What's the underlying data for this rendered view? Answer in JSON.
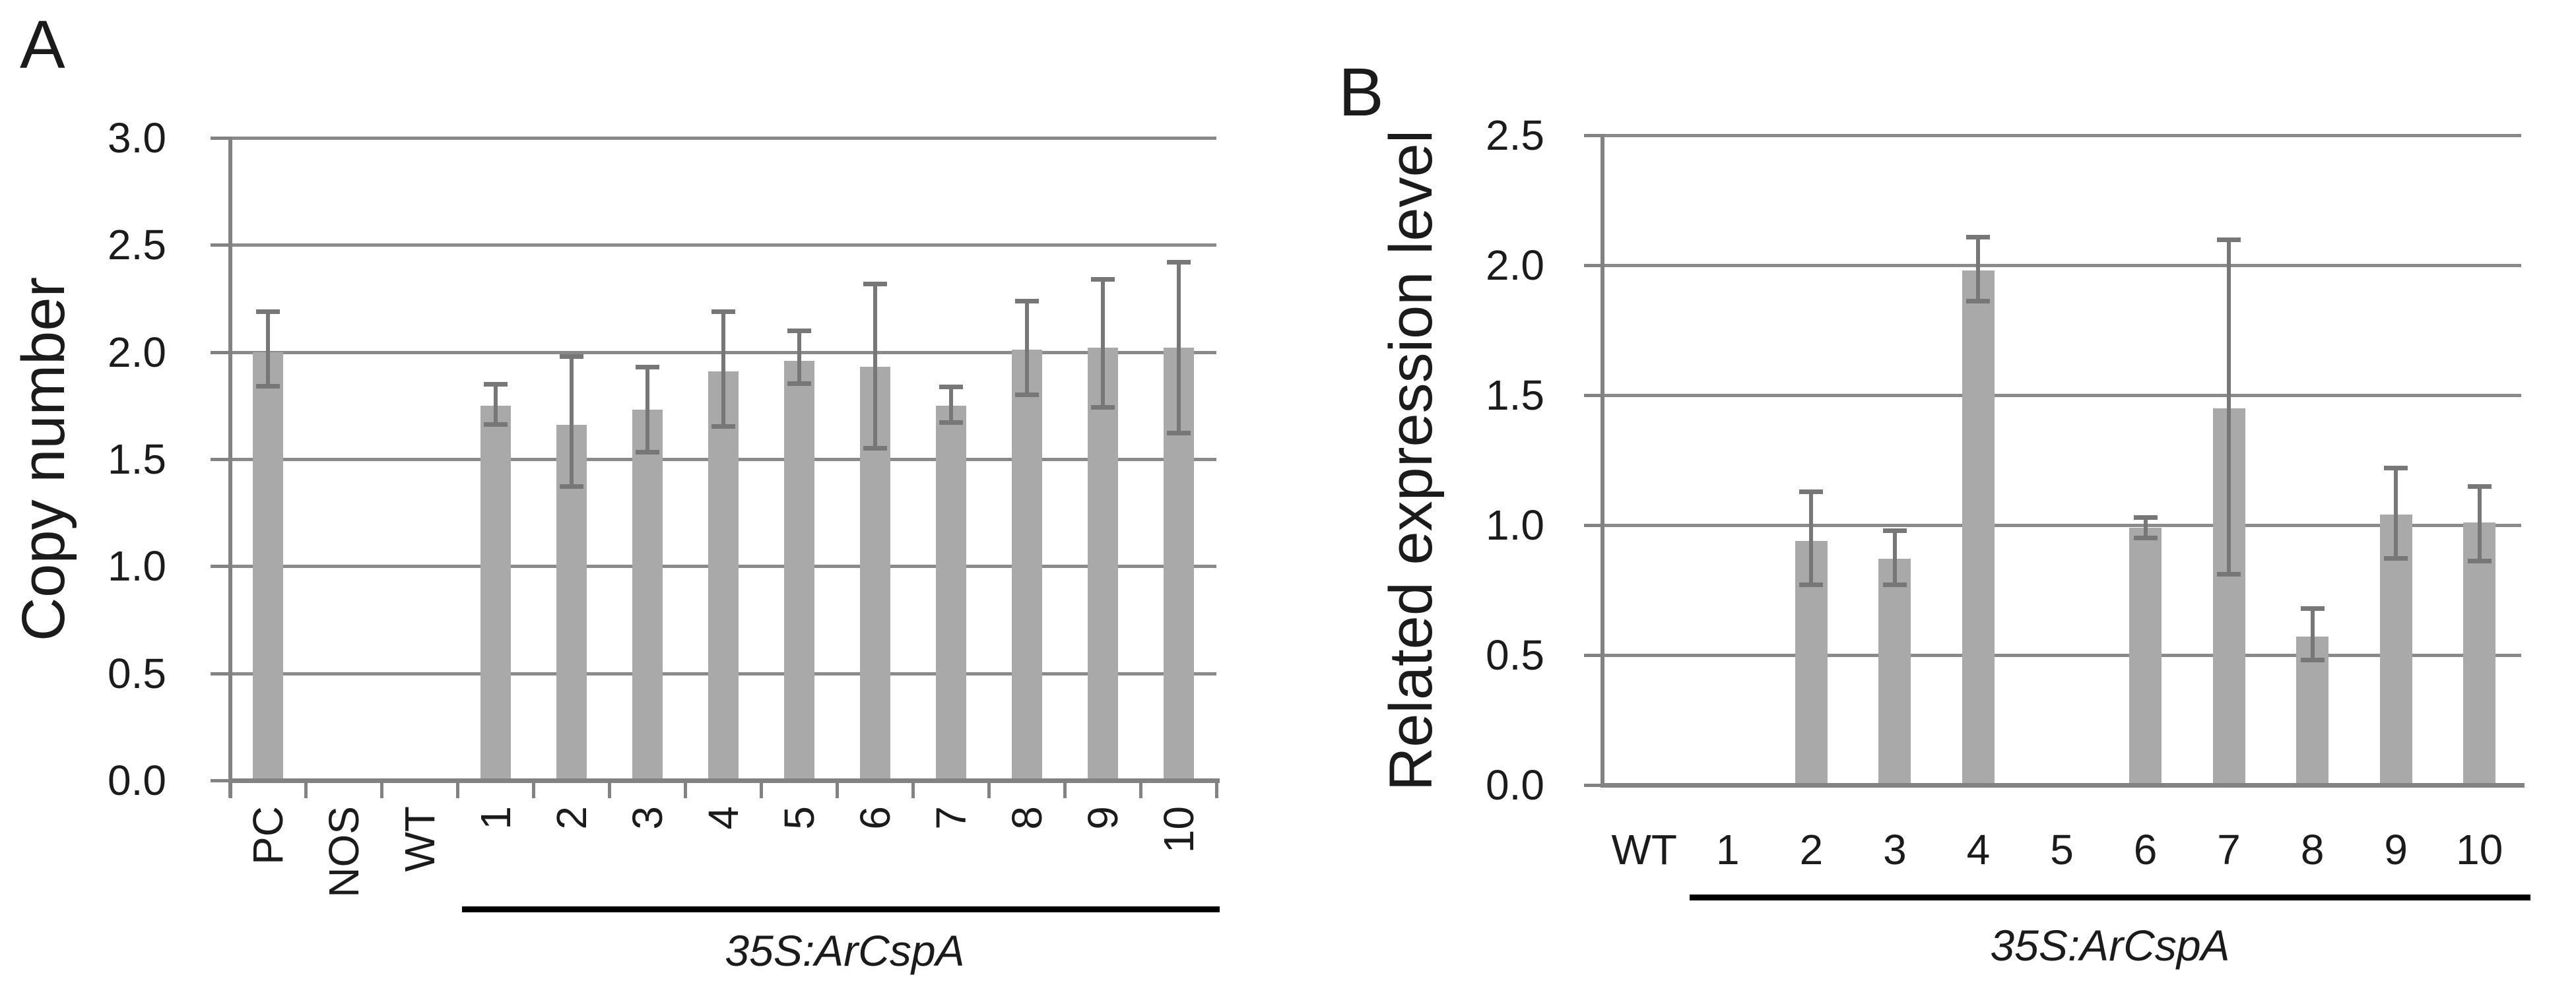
{
  "figure": {
    "background": "#ffffff"
  },
  "panels": [
    {
      "panel_label": "A"
    },
    {
      "panel_label": "B"
    }
  ],
  "colors": {
    "bar": "#a9a9a9",
    "error_bar": "#777777",
    "gridline": "#8a8a8a",
    "axis": "#828282",
    "text": "#1b1b1b",
    "underline": "#000000",
    "background": "#ffffff"
  },
  "chart_data": [
    {
      "type": "bar",
      "panel": "A",
      "title": "",
      "xlabel": "",
      "ylabel": "Copy number",
      "categories": [
        "PC",
        "NOS",
        "WT",
        "1",
        "2",
        "3",
        "4",
        "5",
        "6",
        "7",
        "8",
        "9",
        "10"
      ],
      "values": [
        2.0,
        0,
        0,
        1.75,
        1.66,
        1.73,
        1.91,
        1.96,
        1.93,
        1.75,
        2.01,
        2.02,
        2.02
      ],
      "error_low": [
        1.84,
        null,
        null,
        1.66,
        1.37,
        1.53,
        1.65,
        1.85,
        1.55,
        1.67,
        1.8,
        1.74,
        1.62
      ],
      "error_high": [
        2.19,
        null,
        null,
        1.85,
        1.98,
        1.93,
        2.19,
        2.1,
        2.32,
        1.84,
        2.24,
        2.34,
        2.42
      ],
      "ylim": [
        0,
        3.0
      ],
      "y_tick_step": 0.5,
      "y_tick_labels": [
        "3.0",
        "2.5",
        "2.0",
        "1.5",
        "1.0",
        "0.5",
        "0.0"
      ],
      "grid": true,
      "legend": false,
      "x_labels_rotated": true,
      "group_annotation": {
        "text": "35S:ArCspA",
        "applies_to_categories": [
          "1",
          "2",
          "3",
          "4",
          "5",
          "6",
          "7",
          "8",
          "9",
          "10"
        ]
      }
    },
    {
      "type": "bar",
      "panel": "B",
      "title": "",
      "xlabel": "",
      "ylabel": "Related expression level",
      "categories": [
        "WT",
        "1",
        "2",
        "3",
        "4",
        "5",
        "6",
        "7",
        "8",
        "9",
        "10"
      ],
      "values": [
        0,
        0,
        0.94,
        0.87,
        1.98,
        0,
        0.99,
        1.45,
        0.57,
        1.04,
        1.01
      ],
      "error_low": [
        null,
        null,
        0.77,
        0.77,
        1.86,
        null,
        0.95,
        0.81,
        0.48,
        0.87,
        0.86
      ],
      "error_high": [
        null,
        null,
        1.13,
        0.98,
        2.11,
        null,
        1.03,
        2.1,
        0.68,
        1.22,
        1.15
      ],
      "ylim": [
        0,
        2.5
      ],
      "y_tick_step": 0.5,
      "y_tick_labels": [
        "2.5",
        "2.0",
        "1.5",
        "1.0",
        "0.5",
        "0.0"
      ],
      "grid": true,
      "legend": false,
      "x_labels_rotated": false,
      "group_annotation": {
        "text": "35S:ArCspA",
        "applies_to_categories": [
          "1",
          "2",
          "3",
          "4",
          "5",
          "6",
          "7",
          "8",
          "9",
          "10"
        ]
      }
    }
  ]
}
